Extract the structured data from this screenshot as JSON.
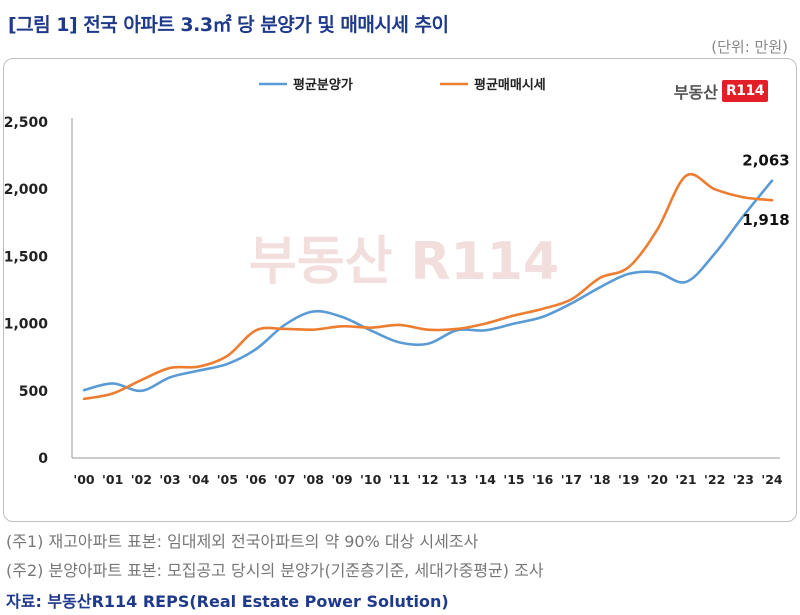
{
  "header": {
    "title": "[그림 1] 전국 아파트 3.3㎡ 당 분양가 및 매매시세 추이",
    "unit": "(단위: 만원)"
  },
  "logo": {
    "text": "부동산",
    "badge": "R114"
  },
  "watermark": "부동산 R114",
  "notes": {
    "note1": "(주1) 재고아파트 표본: 임대제외 전국아파트의 약 90% 대상 시세조사",
    "note2": "(주2) 분양아파트 표본: 모집공고 당시의 분양가(기준층기준, 세대가중평균) 조사",
    "source": "자료: 부동산R114 REPS(Real Estate Power Solution)"
  },
  "chart_data": {
    "type": "line",
    "categories": [
      "'00",
      "'01",
      "'02",
      "'03",
      "'04",
      "'05",
      "'06",
      "'07",
      "'08",
      "'09",
      "'10",
      "'11",
      "'12",
      "'13",
      "'14",
      "'15",
      "'16",
      "'17",
      "'18",
      "'19",
      "'20",
      "'21",
      "'22",
      "'23",
      "'24"
    ],
    "ylim": [
      0,
      2500
    ],
    "yticks": [
      0,
      500,
      1000,
      1500,
      2000,
      2500
    ],
    "ytick_labels": [
      "0",
      "500",
      "1,000",
      "1,500",
      "2,000",
      "2,500"
    ],
    "legend_position": "top",
    "grid": false,
    "series": [
      {
        "name": "평균분양가",
        "color": "#5b9bd5",
        "values": [
          505,
          555,
          500,
          600,
          650,
          700,
          810,
          990,
          1090,
          1050,
          950,
          860,
          850,
          950,
          950,
          1000,
          1050,
          1150,
          1270,
          1370,
          1380,
          1310,
          1520,
          1800,
          2063
        ]
      },
      {
        "name": "평균매매시세",
        "color": "#ed7d31",
        "values": [
          440,
          480,
          580,
          670,
          680,
          760,
          950,
          960,
          955,
          980,
          970,
          990,
          955,
          960,
          1000,
          1060,
          1110,
          1180,
          1340,
          1420,
          1700,
          2100,
          2000,
          1940,
          1918
        ]
      }
    ],
    "annotations": [
      {
        "series": 0,
        "index": 24,
        "text": "2,063"
      },
      {
        "series": 1,
        "index": 24,
        "text": "1,918"
      }
    ]
  }
}
